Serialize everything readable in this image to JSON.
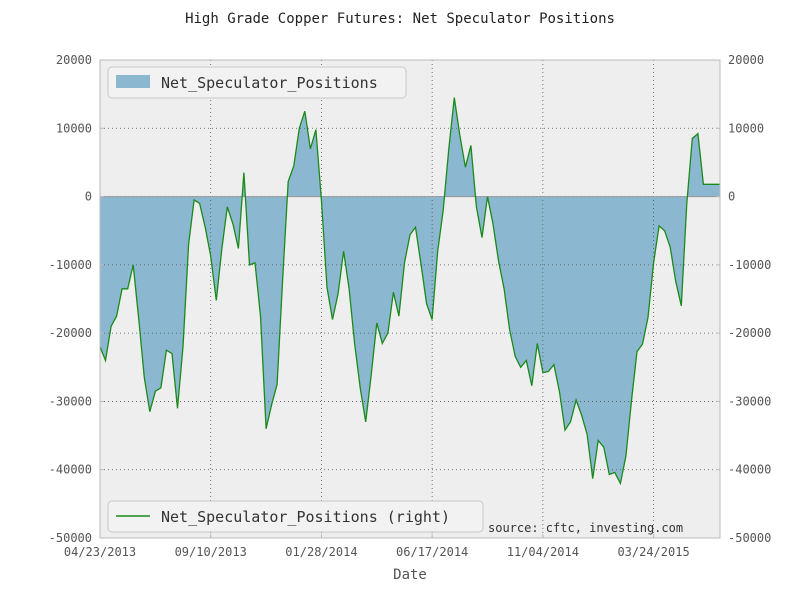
{
  "chart_data": {
    "type": "area",
    "title": "High Grade Copper Futures: Net Speculator Positions",
    "xlabel": "Date",
    "ylabel": "",
    "xlim": [
      "2013-04-23",
      "2015-06-16"
    ],
    "ylim": [
      -50000,
      20000
    ],
    "y_ticks": [
      20000,
      10000,
      0,
      -10000,
      -20000,
      -30000,
      -40000,
      -50000
    ],
    "y_ticks_right": [
      20000,
      10000,
      0,
      -10000,
      -20000,
      -30000,
      -40000,
      -50000
    ],
    "x_tick_labels": [
      "04/23/2013",
      "09/10/2013",
      "01/28/2014",
      "06/17/2014",
      "11/04/2014",
      "03/24/2015"
    ],
    "grid": true,
    "annotation": "source: cftc, investing.com",
    "colors": {
      "area_fill": "#8cb7d1",
      "line": "#1a8a1a",
      "plot_bg": "#eeeeee",
      "zero_line": "#999999"
    },
    "legends": [
      {
        "label": "Net_Speculator_Positions",
        "kind": "area",
        "placement": "top-left"
      },
      {
        "label": "Net_Speculator_Positions (right)",
        "kind": "line",
        "placement": "bottom-left"
      }
    ],
    "series": [
      {
        "name": "Net_Speculator_Positions",
        "x": [
          "2013-04-23",
          "2013-04-30",
          "2013-05-07",
          "2013-05-14",
          "2013-05-21",
          "2013-05-28",
          "2013-06-04",
          "2013-06-11",
          "2013-06-18",
          "2013-06-25",
          "2013-07-02",
          "2013-07-09",
          "2013-07-16",
          "2013-07-23",
          "2013-07-30",
          "2013-08-06",
          "2013-08-13",
          "2013-08-20",
          "2013-08-27",
          "2013-09-03",
          "2013-09-10",
          "2013-09-17",
          "2013-09-24",
          "2013-10-01",
          "2013-10-08",
          "2013-10-15",
          "2013-10-22",
          "2013-10-29",
          "2013-11-05",
          "2013-11-12",
          "2013-11-19",
          "2013-11-26",
          "2013-12-03",
          "2013-12-10",
          "2013-12-17",
          "2013-12-24",
          "2013-12-31",
          "2014-01-07",
          "2014-01-14",
          "2014-01-21",
          "2014-01-28",
          "2014-02-04",
          "2014-02-11",
          "2014-02-18",
          "2014-02-25",
          "2014-03-04",
          "2014-03-11",
          "2014-03-18",
          "2014-03-25",
          "2014-04-01",
          "2014-04-08",
          "2014-04-15",
          "2014-04-22",
          "2014-04-29",
          "2014-05-06",
          "2014-05-13",
          "2014-05-20",
          "2014-05-27",
          "2014-06-03",
          "2014-06-10",
          "2014-06-17",
          "2014-06-24",
          "2014-07-01",
          "2014-07-08",
          "2014-07-15",
          "2014-07-22",
          "2014-07-29",
          "2014-08-05",
          "2014-08-12",
          "2014-08-19",
          "2014-08-26",
          "2014-09-02",
          "2014-09-09",
          "2014-09-16",
          "2014-09-23",
          "2014-09-30",
          "2014-10-07",
          "2014-10-14",
          "2014-10-21",
          "2014-10-28",
          "2014-11-04",
          "2014-11-11",
          "2014-11-18",
          "2014-11-25",
          "2014-12-02",
          "2014-12-09",
          "2014-12-16",
          "2014-12-23",
          "2014-12-30",
          "2015-01-06",
          "2015-01-13",
          "2015-01-20",
          "2015-01-27",
          "2015-02-03",
          "2015-02-10",
          "2015-02-17",
          "2015-02-24",
          "2015-03-03",
          "2015-03-10",
          "2015-03-17",
          "2015-03-24",
          "2015-03-31",
          "2015-04-07",
          "2015-04-14",
          "2015-04-21",
          "2015-04-28",
          "2015-05-05",
          "2015-05-12",
          "2015-05-19",
          "2015-05-26",
          "2015-06-02",
          "2015-06-09",
          "2015-06-16"
        ],
        "values": [
          -22000,
          -24000,
          -19000,
          -17500,
          -13500,
          -13500,
          -10000,
          -18000,
          -26500,
          -31500,
          -28500,
          -28000,
          -22500,
          -23000,
          -31000,
          -22000,
          -7000,
          -500,
          -1000,
          -4500,
          -8700,
          -15200,
          -7700,
          -1500,
          -4000,
          -7600,
          3500,
          -10000,
          -9700,
          -17500,
          -34000,
          -30500,
          -27500,
          -12000,
          2200,
          4500,
          10000,
          12500,
          7000,
          9800,
          -500,
          -13300,
          -18000,
          -14300,
          -8000,
          -13500,
          -21500,
          -28000,
          -33000,
          -26000,
          -18500,
          -21500,
          -20000,
          -14000,
          -17500,
          -9700,
          -5600,
          -4500,
          -10000,
          -15700,
          -18000,
          -8000,
          -2000,
          7000,
          14500,
          9000,
          4300,
          7500,
          -1500,
          -6000,
          0,
          -4000,
          -9500,
          -13500,
          -19500,
          -23400,
          -25000,
          -24000,
          -27700,
          -21500,
          -25800,
          -25600,
          -24600,
          -28600,
          -34200,
          -33000,
          -29800,
          -32000,
          -34800,
          -41300,
          -35700,
          -36700,
          -40700,
          -40400,
          -42000,
          -38000,
          -30000,
          -22700,
          -21600,
          -17700,
          -9700,
          -4300,
          -5000,
          -7400,
          -12400,
          -16000,
          -1000,
          8500,
          9200,
          1800,
          1800,
          1800,
          1800
        ]
      }
    ]
  }
}
